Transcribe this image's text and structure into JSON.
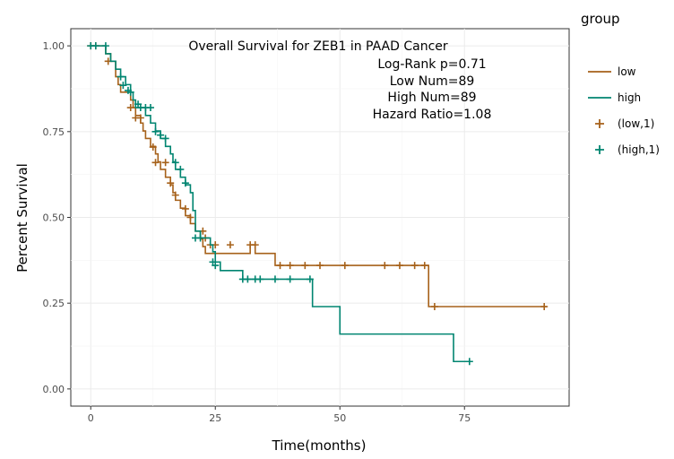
{
  "chart_data": {
    "type": "line",
    "subtype": "kaplan-meier",
    "title": "Overall Survival for ZEB1 in PAAD Cancer",
    "annotations": [
      "Log-Rank p=0.71",
      "Low Num=89",
      "High Num=89",
      "Hazard Ratio=1.08"
    ],
    "xlabel": "Time(months)",
    "ylabel": "Percent Survival",
    "xlim": [
      -4,
      96
    ],
    "ylim": [
      -0.05,
      1.05
    ],
    "x_ticks": [
      0,
      25,
      50,
      75
    ],
    "x_tick_labels": [
      "0",
      "25",
      "50",
      "75"
    ],
    "y_ticks": [
      0,
      0.25,
      0.5,
      0.75,
      1.0
    ],
    "y_tick_labels": [
      "0.00",
      "0.25",
      "0.50",
      "0.75",
      "1.00"
    ],
    "grid": true,
    "legend": {
      "title": "group",
      "position": "right",
      "entries": [
        {
          "label": "low",
          "kind": "line",
          "color": "#a6611a"
        },
        {
          "label": "high",
          "kind": "line",
          "color": "#018571"
        },
        {
          "label": "(low,1)",
          "kind": "censor",
          "color": "#a6611a"
        },
        {
          "label": "(high,1)",
          "kind": "censor",
          "color": "#018571"
        }
      ]
    },
    "series": [
      {
        "name": "low",
        "color": "#a6611a",
        "steps": [
          [
            0,
            1.0
          ],
          [
            3,
            0.977
          ],
          [
            4,
            0.955
          ],
          [
            5,
            0.91
          ],
          [
            5.5,
            0.887
          ],
          [
            6,
            0.865
          ],
          [
            8,
            0.842
          ],
          [
            8.5,
            0.82
          ],
          [
            9,
            0.797
          ],
          [
            10,
            0.775
          ],
          [
            10.5,
            0.752
          ],
          [
            11,
            0.73
          ],
          [
            12,
            0.707
          ],
          [
            13,
            0.685
          ],
          [
            13.5,
            0.662
          ],
          [
            14,
            0.64
          ],
          [
            15,
            0.617
          ],
          [
            16,
            0.595
          ],
          [
            16.5,
            0.572
          ],
          [
            17,
            0.55
          ],
          [
            18,
            0.527
          ],
          [
            19,
            0.505
          ],
          [
            20,
            0.482
          ],
          [
            21,
            0.46
          ],
          [
            22,
            0.437
          ],
          [
            22.5,
            0.415
          ],
          [
            23,
            0.395
          ],
          [
            32,
            0.42
          ],
          [
            33,
            0.395
          ],
          [
            37,
            0.36
          ],
          [
            67.8,
            0.24
          ],
          [
            91.5,
            0.24
          ]
        ],
        "censored": [
          [
            0,
            1.0
          ],
          [
            1,
            1.0
          ],
          [
            3.5,
            0.955
          ],
          [
            8,
            0.82
          ],
          [
            9,
            0.79
          ],
          [
            10,
            0.79
          ],
          [
            12.5,
            0.705
          ],
          [
            13,
            0.66
          ],
          [
            15,
            0.66
          ],
          [
            16,
            0.6
          ],
          [
            17,
            0.565
          ],
          [
            19,
            0.525
          ],
          [
            20,
            0.5
          ],
          [
            22.5,
            0.46
          ],
          [
            23,
            0.44
          ],
          [
            24,
            0.42
          ],
          [
            25,
            0.42
          ],
          [
            28,
            0.42
          ],
          [
            32,
            0.42
          ],
          [
            33,
            0.42
          ],
          [
            38,
            0.36
          ],
          [
            40,
            0.36
          ],
          [
            43,
            0.36
          ],
          [
            46,
            0.36
          ],
          [
            51,
            0.36
          ],
          [
            59,
            0.36
          ],
          [
            62,
            0.36
          ],
          [
            65,
            0.36
          ],
          [
            67,
            0.36
          ],
          [
            69,
            0.24
          ],
          [
            91,
            0.24
          ]
        ]
      },
      {
        "name": "high",
        "color": "#018571",
        "steps": [
          [
            0,
            1.0
          ],
          [
            2,
            1.0
          ],
          [
            3,
            0.977
          ],
          [
            4,
            0.955
          ],
          [
            5,
            0.932
          ],
          [
            6,
            0.91
          ],
          [
            7,
            0.887
          ],
          [
            8,
            0.865
          ],
          [
            8.5,
            0.842
          ],
          [
            9,
            0.82
          ],
          [
            11,
            0.797
          ],
          [
            12,
            0.775
          ],
          [
            13,
            0.752
          ],
          [
            14,
            0.73
          ],
          [
            15,
            0.707
          ],
          [
            16,
            0.685
          ],
          [
            16.5,
            0.662
          ],
          [
            17,
            0.64
          ],
          [
            18,
            0.617
          ],
          [
            19,
            0.595
          ],
          [
            20,
            0.572
          ],
          [
            20.5,
            0.52
          ],
          [
            21,
            0.46
          ],
          [
            22,
            0.44
          ],
          [
            24,
            0.42
          ],
          [
            24.5,
            0.4
          ],
          [
            25,
            0.37
          ],
          [
            26,
            0.345
          ],
          [
            30.5,
            0.32
          ],
          [
            44.5,
            0.24
          ],
          [
            50,
            0.16
          ],
          [
            72.8,
            0.08
          ],
          [
            76,
            0.08
          ]
        ],
        "censored": [
          [
            0,
            1.0
          ],
          [
            1,
            1.0
          ],
          [
            3,
            1.0
          ],
          [
            6,
            0.91
          ],
          [
            6.5,
            0.885
          ],
          [
            7.5,
            0.87
          ],
          [
            8,
            0.865
          ],
          [
            9.5,
            0.83
          ],
          [
            10,
            0.82
          ],
          [
            11,
            0.82
          ],
          [
            12,
            0.82
          ],
          [
            13,
            0.75
          ],
          [
            14,
            0.74
          ],
          [
            15,
            0.73
          ],
          [
            17,
            0.66
          ],
          [
            18,
            0.64
          ],
          [
            19,
            0.6
          ],
          [
            21,
            0.44
          ],
          [
            22,
            0.44
          ],
          [
            24.5,
            0.37
          ],
          [
            25,
            0.36
          ],
          [
            30.5,
            0.32
          ],
          [
            31.5,
            0.32
          ],
          [
            33,
            0.32
          ],
          [
            34,
            0.32
          ],
          [
            37,
            0.32
          ],
          [
            40,
            0.32
          ],
          [
            44,
            0.32
          ],
          [
            76,
            0.08
          ]
        ]
      }
    ]
  }
}
